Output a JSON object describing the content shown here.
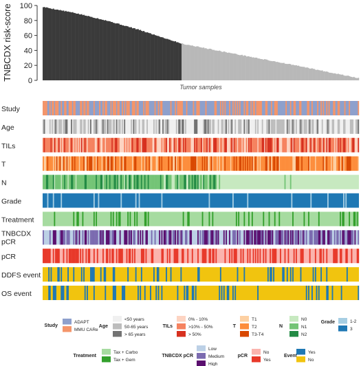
{
  "chart_data": {
    "type": "bar",
    "ylabel": "TNBCDX risk-score",
    "xlabel": "Tumor samples",
    "ylim": [
      0,
      100
    ],
    "yticks": [
      0,
      20,
      40,
      60,
      80,
      100
    ],
    "n_samples": 280,
    "n_high_risk_dark": 123,
    "score_curve": [
      {
        "rank_fraction": 0.0,
        "score": 98
      },
      {
        "rank_fraction": 0.1,
        "score": 90
      },
      {
        "rank_fraction": 0.2,
        "score": 80
      },
      {
        "rank_fraction": 0.3,
        "score": 68
      },
      {
        "rank_fraction": 0.44,
        "score": 49
      },
      {
        "rank_fraction": 0.6,
        "score": 36
      },
      {
        "rank_fraction": 0.8,
        "score": 20
      },
      {
        "rank_fraction": 1.0,
        "score": 3
      }
    ],
    "bar_colors": {
      "high": "#3a3a3a",
      "low": "#b8b8b8"
    },
    "tracks": [
      {
        "label": "Study",
        "base": "#8ea0cc",
        "alt": [
          "#f4956a"
        ],
        "alt_frac": [
          0.4
        ],
        "seed": 11
      },
      {
        "label": "Age",
        "base": "#f0f0f0",
        "alt": [
          "#bdbdbd",
          "#737373"
        ],
        "alt_frac": [
          0.35,
          0.15
        ],
        "seed": 23
      },
      {
        "label": "TILs",
        "base": "#fdd4c2",
        "alt": [
          "#f5825f",
          "#d7301f"
        ],
        "alt_frac": [
          0.45,
          0.25
        ],
        "seed": 37
      },
      {
        "label": "T",
        "base": "#fdd0a2",
        "alt": [
          "#fd8d3c",
          "#d94801"
        ],
        "alt_frac": [
          0.5,
          0.3
        ],
        "seed": 41
      },
      {
        "label": "N",
        "base": "#c7e9c0",
        "alt": [
          "#74c476",
          "#238b45"
        ],
        "alt_frac": [
          0.3,
          0.15
        ],
        "seed": 53,
        "split": 0.56
      },
      {
        "label": "Grade",
        "base": "#1f78b4",
        "alt": [
          "#a6cee3"
        ],
        "alt_frac": [
          0.12
        ],
        "seed": 61
      },
      {
        "label": "Treatment",
        "base": "#a6dba0",
        "alt": [
          "#33a02c"
        ],
        "alt_frac": [
          0.15
        ],
        "seed": 71
      },
      {
        "label": "TNBCDX pCR",
        "base": "#bcd0e6",
        "alt": [
          "#7b6bb0",
          "#5b0f6f"
        ],
        "alt_frac": [
          0.3,
          0.3
        ],
        "seed": 83
      },
      {
        "label": "pCR",
        "base": "#fbb4ae",
        "alt": [
          "#e8392a"
        ],
        "alt_frac": [
          0.4
        ],
        "seed": 97
      },
      {
        "label": "DDFS event",
        "base": "#f1c40f",
        "alt": [
          "#1f78b4"
        ],
        "alt_frac": [
          0.18
        ],
        "seed": 101
      },
      {
        "label": "OS event",
        "base": "#f1c40f",
        "alt": [
          "#1f78b4"
        ],
        "alt_frac": [
          0.15
        ],
        "seed": 113
      }
    ]
  },
  "legend": {
    "study": {
      "title": "Study",
      "items": [
        {
          "label": "ADAPT",
          "color": "#8ea0cc"
        },
        {
          "label": "MMU CARe",
          "color": "#f4956a"
        }
      ]
    },
    "age": {
      "title": "Age",
      "items": [
        {
          "label": "<50 years",
          "color": "#f0f0f0"
        },
        {
          "label": "50-65 years",
          "color": "#bdbdbd"
        },
        {
          "label": "> 65 years",
          "color": "#737373"
        }
      ]
    },
    "tils": {
      "title": "TILs",
      "items": [
        {
          "label": "0% - 10%",
          "color": "#fdd4c2"
        },
        {
          "label": ">10% - 50%",
          "color": "#f5825f"
        },
        {
          "label": "> 50%",
          "color": "#d7301f"
        }
      ]
    },
    "t": {
      "title": "T",
      "items": [
        {
          "label": "T1",
          "color": "#fdd0a2"
        },
        {
          "label": "T2",
          "color": "#fd8d3c"
        },
        {
          "label": "T3-T4",
          "color": "#d94801"
        }
      ]
    },
    "n": {
      "title": "N",
      "items": [
        {
          "label": "N0",
          "color": "#c7e9c0"
        },
        {
          "label": "N1",
          "color": "#74c476"
        },
        {
          "label": "N2",
          "color": "#238b45"
        }
      ]
    },
    "grade": {
      "title": "Grade",
      "items": [
        {
          "label": "1-2",
          "color": "#a6cee3"
        },
        {
          "label": "3",
          "color": "#1f78b4"
        }
      ]
    },
    "treatment": {
      "title": "Treatment",
      "items": [
        {
          "label": "Tax + Carbo",
          "color": "#a6dba0"
        },
        {
          "label": "Tax + Gem",
          "color": "#33a02c"
        }
      ]
    },
    "tnbcdx_pcr": {
      "title": "TNBCDX pCR",
      "items": [
        {
          "label": "Low",
          "color": "#bcd0e6"
        },
        {
          "label": "Medium",
          "color": "#7b6bb0"
        },
        {
          "label": "High",
          "color": "#5b0f6f"
        }
      ]
    },
    "pcr": {
      "title": "pCR",
      "items": [
        {
          "label": "No",
          "color": "#fbb4ae"
        },
        {
          "label": "Yes",
          "color": "#e8392a"
        }
      ]
    },
    "event": {
      "title": "Event",
      "items": [
        {
          "label": "Yes",
          "color": "#1f78b4"
        },
        {
          "label": "No",
          "color": "#f1c40f"
        }
      ]
    }
  }
}
